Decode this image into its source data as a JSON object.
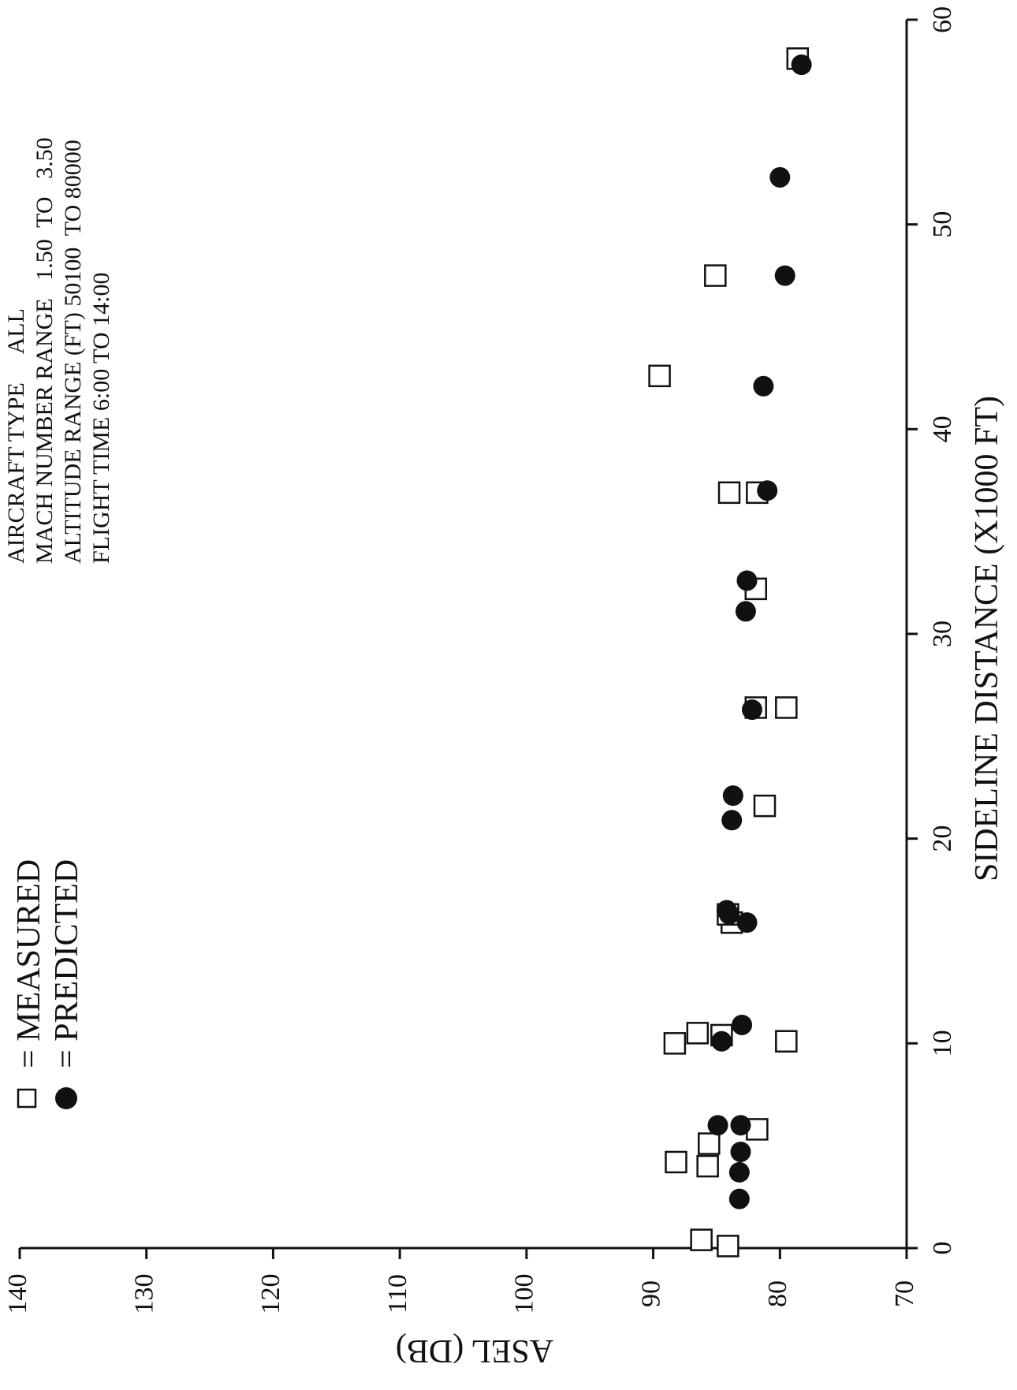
{
  "chart_data": {
    "type": "scatter",
    "title": "",
    "xlabel": "SIDELINE DISTANCE (X1000 FT)",
    "ylabel": "ASEL (DB)",
    "xlim": [
      0,
      60
    ],
    "ylim": [
      70,
      140
    ],
    "x_ticks": [
      0,
      10,
      20,
      30,
      40,
      50,
      60
    ],
    "y_ticks": [
      70,
      80,
      90,
      100,
      110,
      120,
      130,
      140
    ],
    "grid": false,
    "orientation": "page rotated 90 degrees clockwise",
    "legend": {
      "placement": "top-left",
      "entries": [
        {
          "symbol": "open-square",
          "label": "= MEASURED"
        },
        {
          "symbol": "filled-circle",
          "label": "= PREDICTED"
        }
      ]
    },
    "annotation_lines": [
      "AIRCRAFT TYPE     ALL",
      "MACH NUMBER RANGE   1.50  TO   3.50",
      "ALTITUDE RANGE (FT) 50100  TO 80000",
      "FLIGHT TIME 6:00 TO 14:00"
    ],
    "series": [
      {
        "name": "MEASURED",
        "marker": "open-square",
        "points": [
          [
            0.1,
            84.1
          ],
          [
            0.4,
            86.2
          ],
          [
            4.0,
            85.7
          ],
          [
            4.2,
            88.2
          ],
          [
            5.1,
            85.6
          ],
          [
            5.8,
            81.8
          ],
          [
            10.0,
            88.3
          ],
          [
            10.1,
            79.5
          ],
          [
            10.4,
            84.6
          ],
          [
            10.5,
            86.5
          ],
          [
            15.9,
            83.8
          ],
          [
            16.3,
            84.1
          ],
          [
            21.6,
            81.2
          ],
          [
            26.4,
            79.5
          ],
          [
            26.4,
            81.9
          ],
          [
            32.2,
            81.9
          ],
          [
            36.9,
            84.0
          ],
          [
            36.9,
            81.8
          ],
          [
            42.6,
            89.5
          ],
          [
            47.5,
            85.1
          ],
          [
            58.1,
            78.6
          ]
        ]
      },
      {
        "name": "PREDICTED",
        "marker": "filled-circle",
        "points": [
          [
            2.4,
            83.2
          ],
          [
            3.7,
            83.2
          ],
          [
            4.7,
            83.1
          ],
          [
            6.0,
            83.1
          ],
          [
            6.0,
            84.9
          ],
          [
            10.1,
            84.6
          ],
          [
            10.9,
            83.0
          ],
          [
            15.9,
            82.6
          ],
          [
            16.3,
            84.0
          ],
          [
            16.5,
            84.2
          ],
          [
            20.9,
            83.8
          ],
          [
            22.1,
            83.7
          ],
          [
            26.3,
            82.2
          ],
          [
            31.1,
            82.7
          ],
          [
            32.6,
            82.6
          ],
          [
            37.0,
            81.0
          ],
          [
            42.1,
            81.3
          ],
          [
            47.5,
            79.6
          ],
          [
            52.3,
            80.0
          ],
          [
            57.8,
            78.3
          ]
        ]
      }
    ]
  }
}
